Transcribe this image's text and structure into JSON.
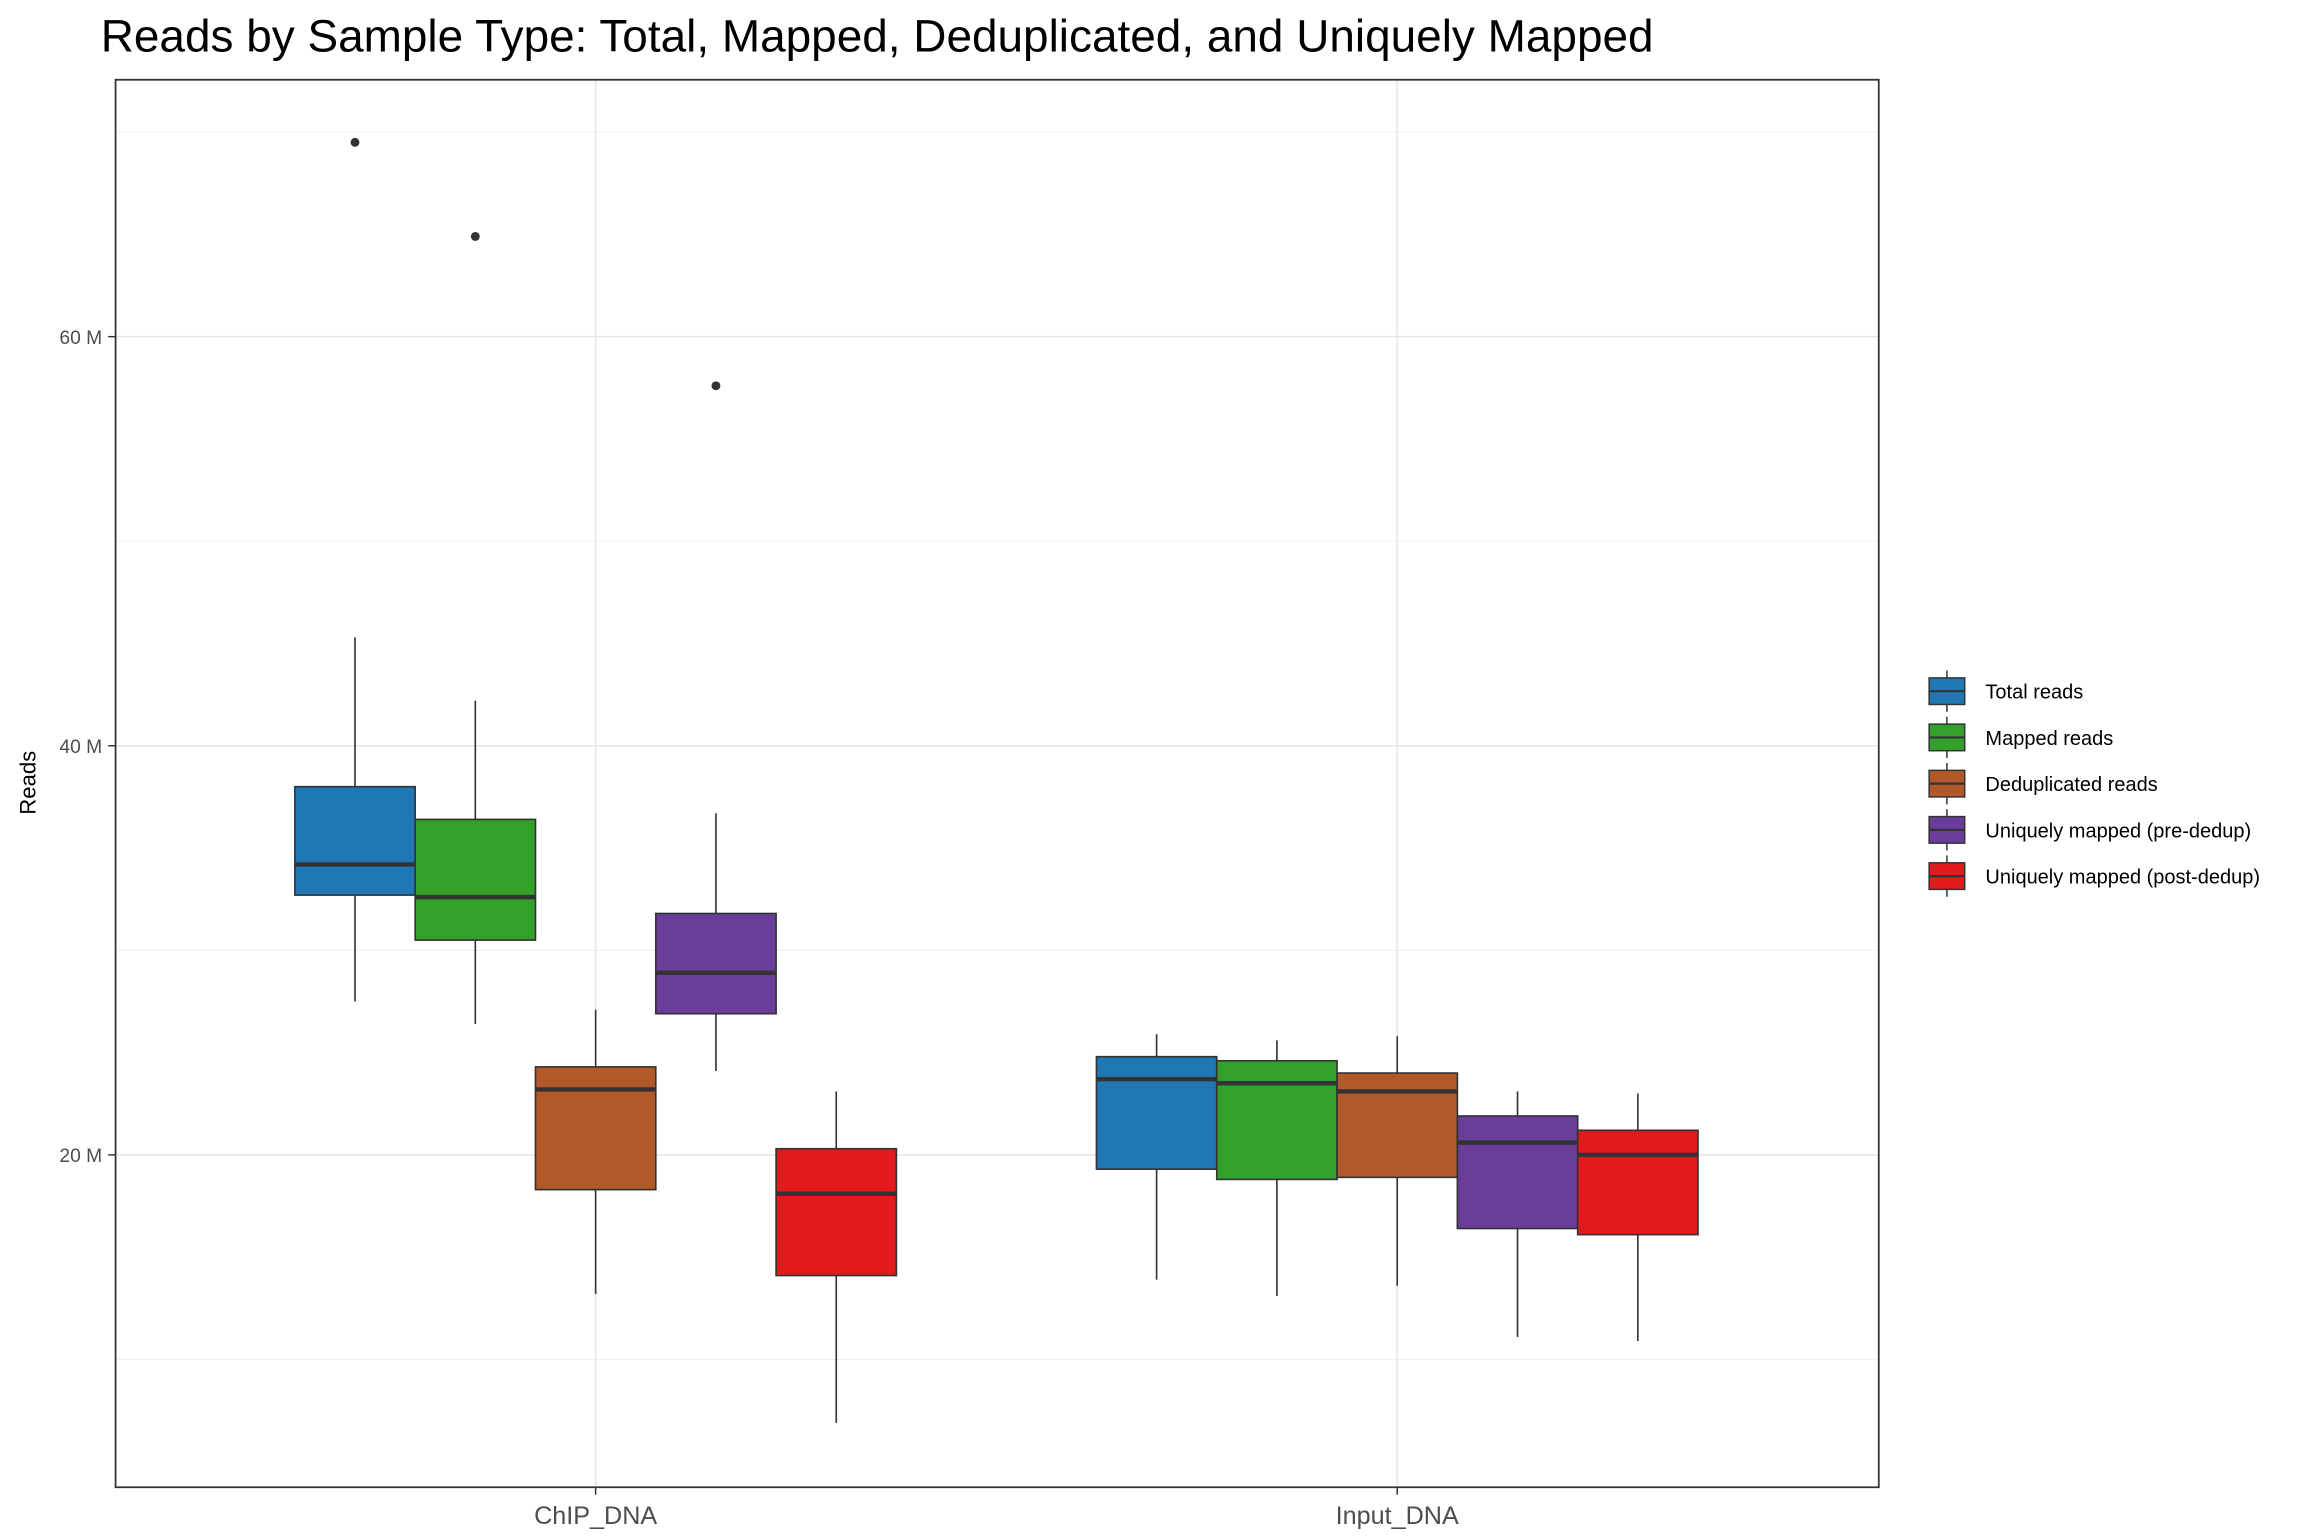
{
  "chart_data": {
    "type": "boxplot",
    "title": "Reads by Sample Type: Total, Mapped, Deduplicated, and Uniquely Mapped",
    "xlabel": "",
    "ylabel": "Reads",
    "ylim": [
      3.75,
      72.56
    ],
    "yticks": [
      20,
      40,
      60
    ],
    "ytick_labels": [
      "20 M",
      "40 M",
      "60 M"
    ],
    "yminor": [
      10,
      30,
      50,
      70
    ],
    "grid": true,
    "legend_position": "right",
    "categories": [
      "ChIP_DNA",
      "Input_DNA"
    ],
    "series": [
      {
        "name": "Total reads",
        "color": "#1F78B4",
        "boxes": [
          {
            "whisker_low": 27.5,
            "q1": 32.7,
            "median": 34.2,
            "q3": 38.0,
            "whisker_high": 45.3,
            "outliers": [
              69.5
            ]
          },
          {
            "whisker_low": 13.9,
            "q1": 19.3,
            "median": 23.7,
            "q3": 24.8,
            "whisker_high": 25.9,
            "outliers": []
          }
        ]
      },
      {
        "name": "Mapped reads",
        "color": "#33A02C",
        "boxes": [
          {
            "whisker_low": 26.4,
            "q1": 30.5,
            "median": 32.6,
            "q3": 36.4,
            "whisker_high": 42.2,
            "outliers": [
              64.9
            ]
          },
          {
            "whisker_low": 13.1,
            "q1": 18.8,
            "median": 23.5,
            "q3": 24.6,
            "whisker_high": 25.6,
            "outliers": []
          }
        ]
      },
      {
        "name": "Deduplicated reads",
        "color": "#B15928",
        "boxes": [
          {
            "whisker_low": 13.2,
            "q1": 18.3,
            "median": 23.2,
            "q3": 24.3,
            "whisker_high": 27.1,
            "outliers": []
          },
          {
            "whisker_low": 13.6,
            "q1": 18.9,
            "median": 23.1,
            "q3": 24.0,
            "whisker_high": 25.8,
            "outliers": []
          }
        ]
      },
      {
        "name": "Uniquely mapped (pre-dedup)",
        "color": "#6A3D9A",
        "boxes": [
          {
            "whisker_low": 24.1,
            "q1": 26.9,
            "median": 28.9,
            "q3": 31.8,
            "whisker_high": 36.7,
            "outliers": [
              57.6
            ]
          },
          {
            "whisker_low": 11.1,
            "q1": 16.4,
            "median": 20.6,
            "q3": 21.9,
            "whisker_high": 23.1,
            "outliers": []
          }
        ]
      },
      {
        "name": "Uniquely mapped (post-dedup)",
        "color": "#E31A1C",
        "boxes": [
          {
            "whisker_low": 6.9,
            "q1": 14.1,
            "median": 18.1,
            "q3": 20.3,
            "whisker_high": 23.1,
            "outliers": []
          },
          {
            "whisker_low": 10.9,
            "q1": 16.1,
            "median": 20.0,
            "q3": 21.2,
            "whisker_high": 23.0,
            "outliers": []
          }
        ]
      }
    ]
  }
}
